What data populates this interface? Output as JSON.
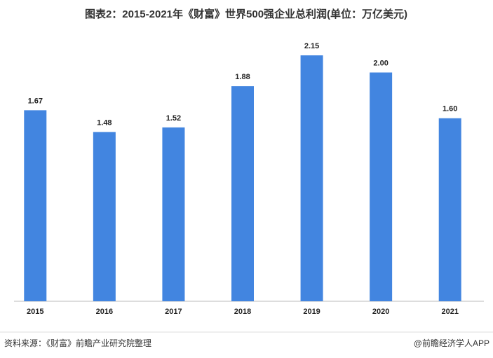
{
  "chart_data": {
    "type": "bar",
    "title": "图表2：2015-2021年《财富》世界500强企业总利润(单位：万亿美元)",
    "categories": [
      "2015",
      "2016",
      "2017",
      "2018",
      "2019",
      "2020",
      "2021"
    ],
    "values": [
      1.67,
      1.48,
      1.52,
      1.88,
      2.15,
      2.0,
      1.6
    ],
    "value_labels": [
      "1.67",
      "1.48",
      "1.52",
      "1.88",
      "2.15",
      "2.00",
      "1.60"
    ],
    "color": "#4285e0",
    "source": "资料来源：《财富》前瞻产业研究院整理",
    "brand": "@前瞻经济学人APP"
  }
}
